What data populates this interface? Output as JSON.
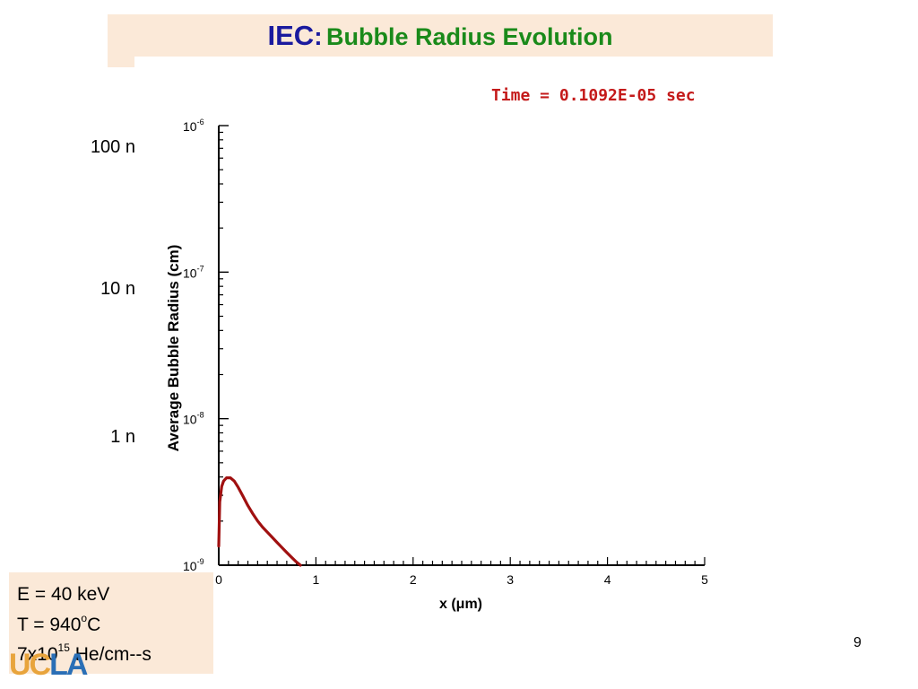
{
  "slide": {
    "title_prefix": "IEC",
    "title_colon": ":",
    "title_main": "Bubble Radius Evolution",
    "left_labels": [
      "100 n",
      "10 n",
      "1 n"
    ],
    "params": {
      "energy": "E = 40 keV",
      "temperature_prefix": "T = 940",
      "temperature_sup": "o",
      "temperature_suffix": "C",
      "flux_prefix": "7x10",
      "flux_sup": "15",
      "flux_suffix": " He/cm--s"
    },
    "logo_uc": "UC",
    "logo_la": "LA",
    "page_number": "9"
  },
  "chart_data": {
    "type": "line",
    "title": "Time = 0.1092E-05 sec",
    "xlabel": "x (μm)",
    "ylabel": "Average Bubble Radius (cm)",
    "xlim": [
      0,
      5
    ],
    "ylim": [
      1e-09,
      1e-06
    ],
    "y_scale": "log",
    "x_tick_labels": [
      "0",
      "1",
      "2",
      "3",
      "4",
      "5"
    ],
    "y_tick_labels": [
      {
        "base": "10",
        "exp": "-6",
        "value": 1e-06
      },
      {
        "base": "10",
        "exp": "-7",
        "value": 1e-07
      },
      {
        "base": "10",
        "exp": "-8",
        "value": 1e-08
      },
      {
        "base": "10",
        "exp": "-9",
        "value": 1e-09
      }
    ],
    "series": [
      {
        "color": "#a01010",
        "x": [
          0.0,
          0.01,
          0.03,
          0.05,
          0.08,
          0.12,
          0.16,
          0.2,
          0.25,
          0.3,
          0.35,
          0.4,
          0.45,
          0.5,
          0.55,
          0.6,
          0.65,
          0.7,
          0.75,
          0.8,
          0.84
        ],
        "y": [
          1.35e-09,
          2.7e-09,
          3.45e-09,
          3.75e-09,
          3.95e-09,
          3.95e-09,
          3.75e-09,
          3.4e-09,
          2.95e-09,
          2.55e-09,
          2.25e-09,
          2e-09,
          1.82e-09,
          1.68e-09,
          1.55e-09,
          1.43e-09,
          1.32e-09,
          1.22e-09,
          1.13e-09,
          1.05e-09,
          1e-09
        ]
      }
    ],
    "title_color": "#c41a1a"
  }
}
